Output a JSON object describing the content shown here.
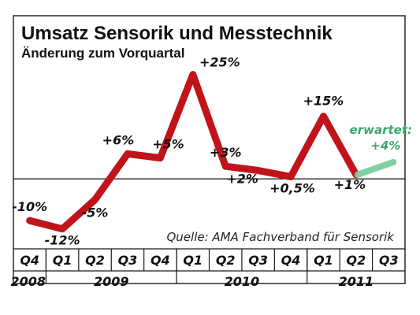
{
  "chart_data": {
    "type": "line",
    "title": "Umsatz Sensorik und Messtechnik",
    "subtitle": "Änderung zum Vorquartal",
    "source": "Quelle: AMA Fachverband für Sensorik",
    "categories": [
      "Q4",
      "Q1",
      "Q2",
      "Q3",
      "Q4",
      "Q1",
      "Q2",
      "Q3",
      "Q4",
      "Q1",
      "Q2",
      "Q3"
    ],
    "year_groups": [
      {
        "label": "2008",
        "count": 1
      },
      {
        "label": "2009",
        "count": 4
      },
      {
        "label": "2010",
        "count": 4
      },
      {
        "label": "2011",
        "count": 3
      }
    ],
    "ylim": [
      -13,
      27
    ],
    "series": [
      {
        "values": [
          -10,
          -12,
          -5,
          6,
          5,
          25,
          3,
          2,
          0.5,
          15,
          1,
          null
        ],
        "labels": [
          "-10%",
          "-12%",
          "-5%",
          "+6%",
          "+5%",
          "+25%",
          "+3%",
          "+2%",
          "+0,5%",
          "+15%",
          "+1%",
          ""
        ],
        "color": "#c0141a"
      }
    ],
    "expected": {
      "label": "erwartet:",
      "value_label": "+4%",
      "from_index": 10,
      "to_index": 11,
      "values": [
        1,
        4
      ],
      "color": "#7fd0a2"
    },
    "grid": false,
    "baseline_value": 0
  }
}
